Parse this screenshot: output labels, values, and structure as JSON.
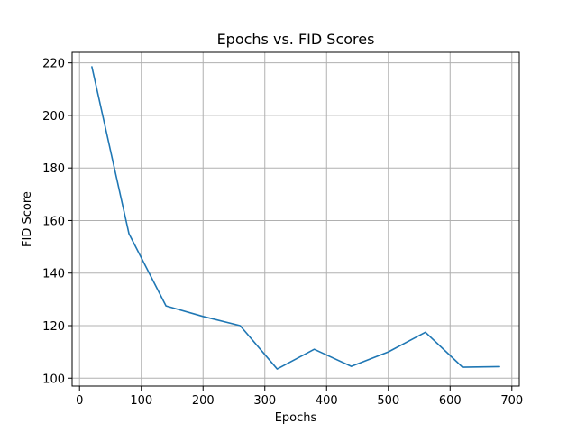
{
  "chart_data": {
    "type": "line",
    "title": "Epochs vs. FID Scores",
    "xlabel": "Epochs",
    "ylabel": "FID Score",
    "xlim": [
      -12,
      712
    ],
    "ylim": [
      97,
      224
    ],
    "xticks": [
      0,
      100,
      200,
      300,
      400,
      500,
      600,
      700
    ],
    "yticks": [
      100,
      120,
      140,
      160,
      180,
      200,
      220
    ],
    "xtick_labels": [
      "0",
      "100",
      "200",
      "300",
      "400",
      "500",
      "600",
      "700"
    ],
    "ytick_labels": [
      "100",
      "120",
      "140",
      "160",
      "180",
      "200",
      "220"
    ],
    "grid": true,
    "legend": false,
    "series": [
      {
        "color": "#1f77b4",
        "x": [
          20,
          80,
          140,
          200,
          260,
          320,
          380,
          440,
          500,
          560,
          620,
          680
        ],
        "y": [
          218.5,
          155,
          127.5,
          123.5,
          120,
          103.5,
          111,
          104.5,
          110,
          117.5,
          104.2,
          104.4
        ]
      }
    ]
  },
  "colors": {
    "grid": "#b0b0b0",
    "axes": "#000000",
    "background": "#ffffff"
  }
}
